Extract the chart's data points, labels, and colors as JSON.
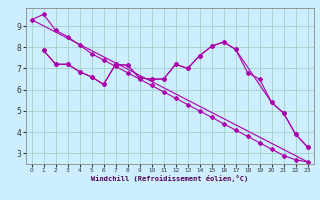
{
  "xlabel": "Windchill (Refroidissement éolien,°C)",
  "background_color": "#cceeff",
  "grid_color": "#99ccbb",
  "line_color": "#aa00aa",
  "xlim": [
    -0.5,
    23.5
  ],
  "ylim": [
    2.5,
    9.85
  ],
  "yticks": [
    3,
    4,
    5,
    6,
    7,
    8,
    9
  ],
  "xticks": [
    0,
    1,
    2,
    3,
    4,
    5,
    6,
    7,
    8,
    9,
    10,
    11,
    12,
    13,
    14,
    15,
    16,
    17,
    18,
    19,
    20,
    21,
    22,
    23
  ],
  "series1_x": [
    0,
    1
  ],
  "series1_y": [
    9.3,
    9.55
  ],
  "series2_x": [
    0,
    1,
    2,
    3,
    4,
    5,
    6,
    7,
    8,
    9,
    10,
    11,
    12,
    13,
    14,
    15,
    16,
    17,
    18,
    19,
    20,
    21,
    22,
    23
  ],
  "series2_y": [
    9.3,
    9.55,
    8.8,
    8.5,
    8.1,
    7.7,
    7.4,
    7.1,
    6.8,
    6.5,
    6.2,
    5.9,
    5.6,
    5.3,
    5.0,
    4.7,
    4.4,
    4.1,
    3.8,
    3.5,
    3.2,
    2.9,
    2.7,
    2.6
  ],
  "series3_x": [
    1,
    2,
    3,
    4,
    5,
    6,
    7,
    8,
    9,
    10,
    11,
    12,
    13,
    14,
    15,
    16,
    17,
    20,
    21,
    22,
    23
  ],
  "series3_y": [
    7.85,
    7.2,
    7.2,
    6.85,
    6.6,
    6.25,
    7.2,
    7.15,
    6.55,
    6.5,
    6.5,
    7.2,
    7.0,
    7.6,
    8.05,
    8.25,
    7.9,
    5.4,
    4.9,
    3.9,
    3.3
  ],
  "series4_x": [
    1,
    2,
    3,
    4,
    5,
    6,
    7,
    8,
    9,
    10,
    11,
    12,
    13,
    14,
    15,
    16,
    17,
    18,
    19,
    20,
    21,
    22,
    23
  ],
  "series4_y": [
    7.85,
    7.2,
    7.2,
    6.85,
    6.6,
    6.25,
    7.2,
    7.15,
    6.55,
    6.5,
    6.5,
    7.2,
    7.0,
    7.6,
    8.05,
    8.25,
    7.9,
    6.8,
    6.5,
    5.4,
    4.9,
    3.9,
    3.3
  ],
  "series5_x": [
    0,
    23
  ],
  "series5_y": [
    9.3,
    2.6
  ]
}
